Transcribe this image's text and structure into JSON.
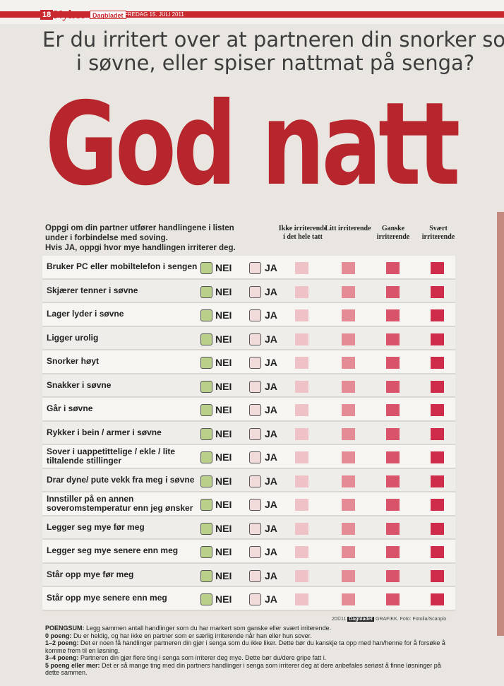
{
  "header": {
    "page_number": "18",
    "section": "Nyhet",
    "publication": "Dagbladet",
    "date": "FREDAG 15. JULI 2011"
  },
  "headline": {
    "line1": "Er du irritert over at partneren din snorker som",
    "line2": "i søvne, eller spiser nattmat på senga?"
  },
  "title": "God natt",
  "intro": {
    "line1": "Oppgi om din partner utfører handlingene i listen",
    "line2": "under i forbindelse med soving.",
    "line3": "Hvis JA, oppgi hvor mye handlingen irriterer deg."
  },
  "columns": [
    "Ikke irriterende i det hele tatt",
    "Litt irriterende",
    "Ganske irriterende",
    "Svært irriterende"
  ],
  "options": {
    "nei": "NEI",
    "ja": "JA"
  },
  "rows": [
    "Bruker PC eller mobiltelefon i sengen",
    "Skjærer tenner i søvne",
    "Lager lyder i søvne",
    "Ligger urolig",
    "Snorker høyt",
    "Snakker i søvne",
    "Går i søvne",
    "Rykker i bein / armer i søvne",
    "Sover i uappetittelige / ekle / lite tiltalende stillinger",
    "Drar dyne/ pute vekk fra meg i søvne",
    "Innstiller på en annen soveromstemperatur enn jeg ønsker",
    "Legger seg mye før meg",
    "Legger seg mye senere enn meg",
    "Står opp mye før meg",
    "Står opp mye senere enn meg"
  ],
  "credit": {
    "year": "20©11",
    "logo": "Dagbladet",
    "text": "GRAFIKK. Foto: Fotolia/Scanpix"
  },
  "scoring": {
    "title": "POENGSUM:",
    "title_text": "Legg sammen antall handlinger som du har markert som ganske eller svært irriterende.",
    "p0_label": "0 poeng:",
    "p0_text": "Du er heldig, og har ikke en partner som er særlig irriterende når han eller hun sover.",
    "p1_label": "1–2 poeng:",
    "p1_text": "Det er noen få handlinger partneren din gjør i senga som du ikke liker. Dette bør du kanskje ta opp med han/henne for å forsøke å komme frem til en løsning.",
    "p2_label": "3–4 poeng:",
    "p2_text": "Partneren din gjør flere ting i senga som irriterer deg mye. Dette bør du/dere gripe fatt i.",
    "p3_label": "5 poeng eller mer:",
    "p3_text": "Det er så mange ting med din partners handlinger i senga som irriterer deg at dere anbefales seriøst å finne løsninger på dette sammen."
  },
  "colors": {
    "brand_red": "#c8282e",
    "title_red": "#b8262d",
    "nei_box": "#b9cf8a",
    "ja_box": "#f1dada",
    "scale": [
      "#eec2c6",
      "#e48b96",
      "#d9536a",
      "#cf2b4b"
    ]
  }
}
